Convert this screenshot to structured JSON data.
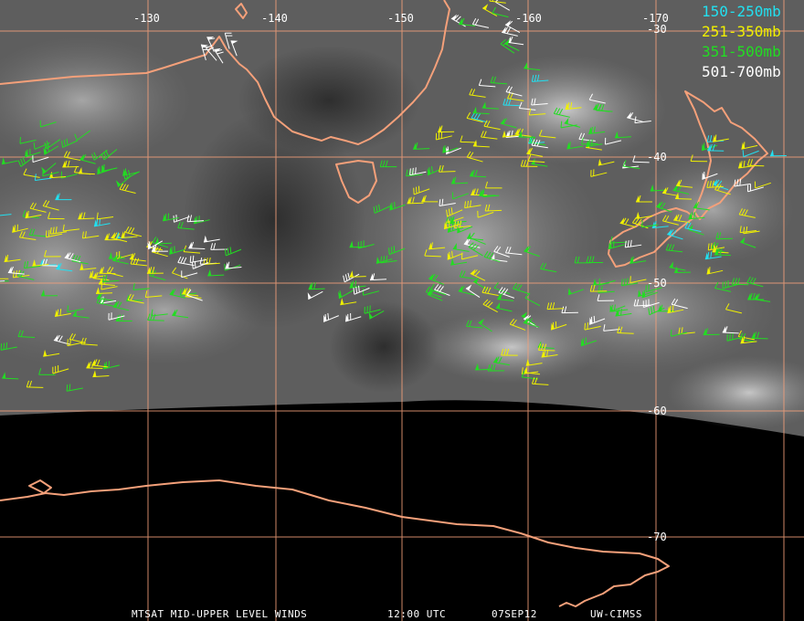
{
  "map": {
    "grid": {
      "longitudes": [
        "-130",
        "-140",
        "-150",
        "-160",
        "-170"
      ],
      "latitudes": [
        "-30",
        "-40",
        "-50",
        "-60",
        "-70"
      ]
    },
    "legend": [
      {
        "label": "150-250mb",
        "color": "#22e0f0"
      },
      {
        "label": "251-350mb",
        "color": "#f0f000"
      },
      {
        "label": "351-500mb",
        "color": "#22dd22"
      },
      {
        "label": "501-700mb",
        "color": "#ffffff"
      }
    ],
    "footer": {
      "product": "MTSAT MID-UPPER LEVEL WINDS",
      "time": "12:00 UTC",
      "date": "07SEP12",
      "source": "UW-CIMSS"
    },
    "colors": {
      "coastline": "#f4a07a",
      "gridline": "#f4a07a",
      "space": "#000000"
    }
  }
}
